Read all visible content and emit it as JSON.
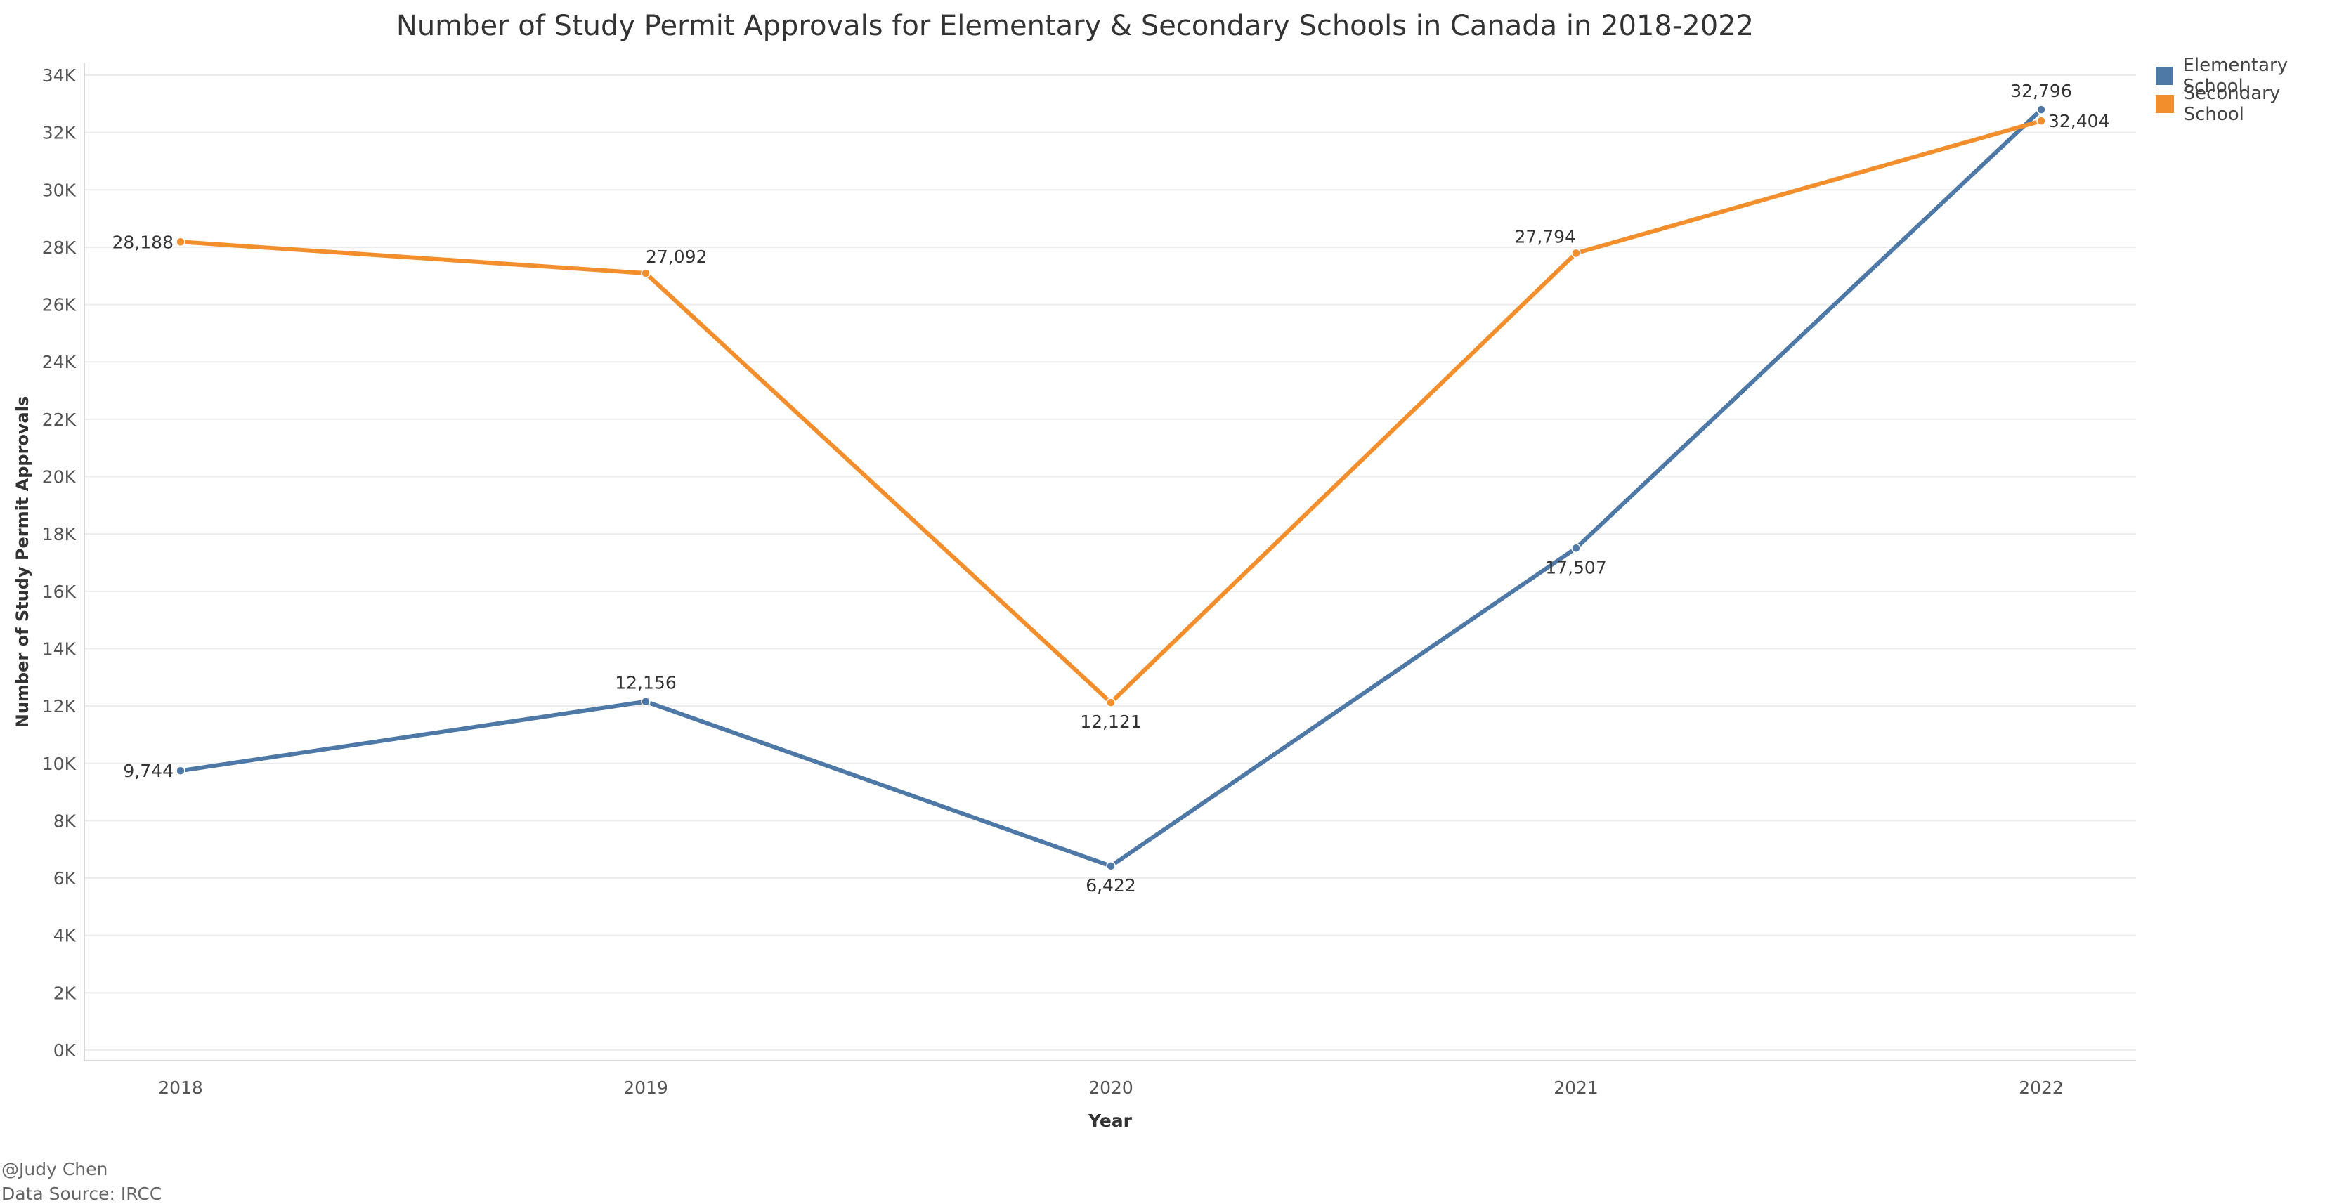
{
  "chart_data": {
    "type": "line",
    "title": "Number of Study Permit Approvals for Elementary & Secondary Schools in Canada in 2018-2022",
    "xlabel": "Year",
    "ylabel": "Number of Study Permit Approvals",
    "categories": [
      "2018",
      "2019",
      "2020",
      "2021",
      "2022"
    ],
    "ylim": [
      0,
      34000
    ],
    "yticks": [
      0,
      2000,
      4000,
      6000,
      8000,
      10000,
      12000,
      14000,
      16000,
      18000,
      20000,
      22000,
      24000,
      26000,
      28000,
      30000,
      32000,
      34000
    ],
    "ytick_labels": [
      "0K",
      "2K",
      "4K",
      "6K",
      "8K",
      "10K",
      "12K",
      "14K",
      "16K",
      "18K",
      "20K",
      "22K",
      "24K",
      "26K",
      "28K",
      "30K",
      "32K",
      "34K"
    ],
    "grid": true,
    "legend_position": "top-right",
    "series": [
      {
        "name": "Elementary School",
        "color": "#4e79a7",
        "values": [
          9744,
          12156,
          6422,
          17507,
          32796
        ],
        "labels": [
          "9,744",
          "12,156",
          "6,422",
          "17,507",
          "32,796"
        ],
        "label_positions": [
          "left",
          "above",
          "below",
          "below",
          "above"
        ]
      },
      {
        "name": "Secondary School",
        "color": "#f28e2b",
        "values": [
          28188,
          27092,
          12121,
          27794,
          32404
        ],
        "labels": [
          "28,188",
          "27,092",
          "12,121",
          "27,794",
          "32,404"
        ],
        "label_positions": [
          "left",
          "above-right",
          "below",
          "above-left",
          "right"
        ]
      }
    ]
  },
  "footer": {
    "credit": "@Judy Chen",
    "source": "Data Source: IRCC"
  }
}
